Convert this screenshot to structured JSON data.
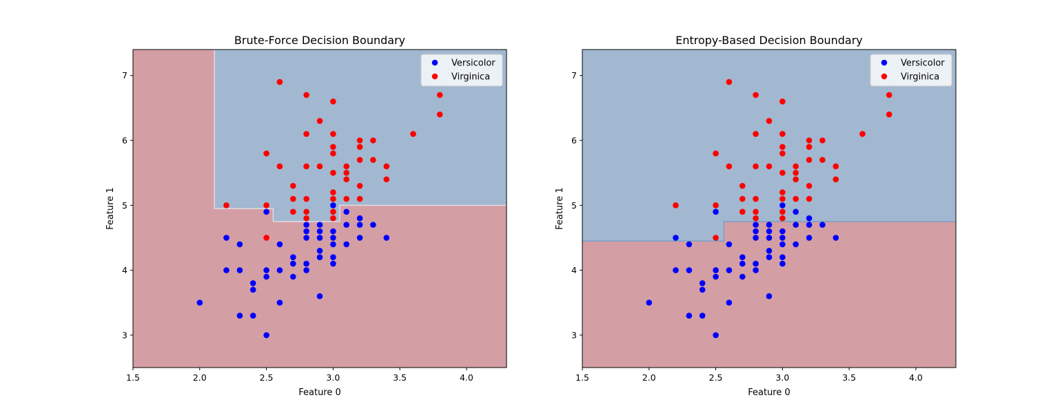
{
  "chart_data": [
    {
      "type": "scatter",
      "title": "Brute-Force Decision Boundary",
      "xlabel": "Feature 0",
      "ylabel": "Feature 1",
      "xlim": [
        1.5,
        4.3
      ],
      "ylim": [
        2.5,
        7.4
      ],
      "xticks": [
        "1.5",
        "2.0",
        "2.5",
        "3.0",
        "3.5",
        "4.0"
      ],
      "yticks": [
        "3",
        "4",
        "5",
        "6",
        "7"
      ],
      "legend_position": "top-right",
      "grid": false,
      "colors": {
        "versicolor": "#0000ff",
        "virginica": "#ff0000",
        "region_blue": "#a2b8d0",
        "region_red": "#d49ea5"
      },
      "decision_regions": {
        "red": "x < 2.11, or y < 4.95 (x < 2.55), or y < 4.75 (2.55 ≤ x < 3.05), or y < 5.0 (x ≥ 3.05)",
        "blue": "everywhere else"
      },
      "series": [
        {
          "name": "Versicolor",
          "color": "#0000ff",
          "points": [
            [
              2.0,
              3.5
            ],
            [
              2.2,
              4.5
            ],
            [
              2.2,
              4.0
            ],
            [
              2.3,
              4.4
            ],
            [
              2.3,
              4.0
            ],
            [
              2.3,
              3.3
            ],
            [
              2.4,
              3.8
            ],
            [
              2.4,
              3.7
            ],
            [
              2.4,
              3.3
            ],
            [
              2.5,
              4.9
            ],
            [
              2.5,
              4.0
            ],
            [
              2.5,
              3.9
            ],
            [
              2.5,
              3.0
            ],
            [
              2.6,
              4.4
            ],
            [
              2.6,
              4.0
            ],
            [
              2.6,
              3.5
            ],
            [
              2.7,
              4.2
            ],
            [
              2.7,
              4.1
            ],
            [
              2.7,
              3.9
            ],
            [
              2.8,
              4.7
            ],
            [
              2.8,
              4.6
            ],
            [
              2.8,
              4.5
            ],
            [
              2.8,
              4.1
            ],
            [
              2.8,
              4.0
            ],
            [
              2.9,
              4.7
            ],
            [
              2.9,
              4.6
            ],
            [
              2.9,
              4.5
            ],
            [
              2.9,
              4.3
            ],
            [
              2.9,
              4.2
            ],
            [
              2.9,
              3.6
            ],
            [
              3.0,
              5.0
            ],
            [
              3.0,
              4.6
            ],
            [
              3.0,
              4.5
            ],
            [
              3.0,
              4.4
            ],
            [
              3.0,
              4.2
            ],
            [
              3.0,
              4.1
            ],
            [
              3.1,
              4.9
            ],
            [
              3.1,
              4.7
            ],
            [
              3.1,
              4.4
            ],
            [
              3.2,
              4.8
            ],
            [
              3.2,
              4.7
            ],
            [
              3.2,
              4.5
            ],
            [
              3.3,
              4.7
            ],
            [
              3.4,
              4.5
            ]
          ]
        },
        {
          "name": "Virginica",
          "color": "#ff0000",
          "points": [
            [
              2.2,
              5.0
            ],
            [
              2.5,
              5.8
            ],
            [
              2.5,
              5.0
            ],
            [
              2.5,
              4.5
            ],
            [
              2.6,
              6.9
            ],
            [
              2.6,
              5.6
            ],
            [
              2.7,
              5.3
            ],
            [
              2.7,
              5.1
            ],
            [
              2.7,
              4.9
            ],
            [
              2.8,
              6.7
            ],
            [
              2.8,
              6.1
            ],
            [
              2.8,
              5.6
            ],
            [
              2.8,
              5.1
            ],
            [
              2.8,
              4.9
            ],
            [
              2.8,
              4.8
            ],
            [
              2.9,
              6.3
            ],
            [
              2.9,
              5.6
            ],
            [
              3.0,
              6.6
            ],
            [
              3.0,
              6.1
            ],
            [
              3.0,
              5.9
            ],
            [
              3.0,
              5.8
            ],
            [
              3.0,
              5.5
            ],
            [
              3.0,
              5.2
            ],
            [
              3.0,
              5.1
            ],
            [
              3.0,
              4.9
            ],
            [
              3.0,
              4.8
            ],
            [
              3.1,
              5.6
            ],
            [
              3.1,
              5.5
            ],
            [
              3.1,
              5.4
            ],
            [
              3.1,
              5.1
            ],
            [
              3.2,
              6.0
            ],
            [
              3.2,
              5.9
            ],
            [
              3.2,
              5.7
            ],
            [
              3.2,
              5.3
            ],
            [
              3.2,
              5.1
            ],
            [
              3.3,
              6.0
            ],
            [
              3.3,
              5.7
            ],
            [
              3.4,
              5.6
            ],
            [
              3.4,
              5.4
            ],
            [
              3.6,
              6.1
            ],
            [
              3.8,
              6.7
            ],
            [
              3.8,
              6.4
            ]
          ]
        }
      ]
    },
    {
      "type": "scatter",
      "title": "Entropy-Based Decision Boundary",
      "xlabel": "Feature 0",
      "ylabel": "Feature 1",
      "xlim": [
        1.5,
        4.3
      ],
      "ylim": [
        2.5,
        7.4
      ],
      "xticks": [
        "1.5",
        "2.0",
        "2.5",
        "3.0",
        "3.5",
        "4.0"
      ],
      "yticks": [
        "3",
        "4",
        "5",
        "6",
        "7"
      ],
      "legend_position": "top-right",
      "grid": false,
      "colors": {
        "versicolor": "#0000ff",
        "virginica": "#ff0000",
        "region_blue": "#a2b8d0",
        "region_red": "#d49ea5"
      },
      "decision_regions": {
        "red": "y < 4.45 (x < 2.55), or y < 4.75 (x ≥ 2.55)",
        "blue": "everywhere else"
      },
      "series": [
        {
          "name": "Versicolor",
          "color": "#0000ff",
          "points": [
            [
              2.0,
              3.5
            ],
            [
              2.2,
              4.5
            ],
            [
              2.2,
              4.0
            ],
            [
              2.3,
              4.4
            ],
            [
              2.3,
              4.0
            ],
            [
              2.3,
              3.3
            ],
            [
              2.4,
              3.8
            ],
            [
              2.4,
              3.7
            ],
            [
              2.4,
              3.3
            ],
            [
              2.5,
              4.9
            ],
            [
              2.5,
              4.0
            ],
            [
              2.5,
              3.9
            ],
            [
              2.5,
              3.0
            ],
            [
              2.6,
              4.4
            ],
            [
              2.6,
              4.0
            ],
            [
              2.6,
              3.5
            ],
            [
              2.7,
              4.2
            ],
            [
              2.7,
              4.1
            ],
            [
              2.7,
              3.9
            ],
            [
              2.8,
              4.7
            ],
            [
              2.8,
              4.6
            ],
            [
              2.8,
              4.5
            ],
            [
              2.8,
              4.1
            ],
            [
              2.8,
              4.0
            ],
            [
              2.9,
              4.7
            ],
            [
              2.9,
              4.6
            ],
            [
              2.9,
              4.5
            ],
            [
              2.9,
              4.3
            ],
            [
              2.9,
              4.2
            ],
            [
              2.9,
              3.6
            ],
            [
              3.0,
              5.0
            ],
            [
              3.0,
              4.6
            ],
            [
              3.0,
              4.5
            ],
            [
              3.0,
              4.4
            ],
            [
              3.0,
              4.2
            ],
            [
              3.0,
              4.1
            ],
            [
              3.1,
              4.9
            ],
            [
              3.1,
              4.7
            ],
            [
              3.1,
              4.4
            ],
            [
              3.2,
              4.8
            ],
            [
              3.2,
              4.7
            ],
            [
              3.2,
              4.5
            ],
            [
              3.3,
              4.7
            ],
            [
              3.4,
              4.5
            ]
          ]
        },
        {
          "name": "Virginica",
          "color": "#ff0000",
          "points": [
            [
              2.2,
              5.0
            ],
            [
              2.5,
              5.8
            ],
            [
              2.5,
              5.0
            ],
            [
              2.5,
              4.5
            ],
            [
              2.6,
              6.9
            ],
            [
              2.6,
              5.6
            ],
            [
              2.7,
              5.3
            ],
            [
              2.7,
              5.1
            ],
            [
              2.7,
              4.9
            ],
            [
              2.8,
              6.7
            ],
            [
              2.8,
              6.1
            ],
            [
              2.8,
              5.6
            ],
            [
              2.8,
              5.1
            ],
            [
              2.8,
              4.9
            ],
            [
              2.8,
              4.8
            ],
            [
              2.9,
              6.3
            ],
            [
              2.9,
              5.6
            ],
            [
              3.0,
              6.6
            ],
            [
              3.0,
              6.1
            ],
            [
              3.0,
              5.9
            ],
            [
              3.0,
              5.8
            ],
            [
              3.0,
              5.5
            ],
            [
              3.0,
              5.2
            ],
            [
              3.0,
              5.1
            ],
            [
              3.0,
              4.9
            ],
            [
              3.0,
              4.8
            ],
            [
              3.1,
              5.6
            ],
            [
              3.1,
              5.5
            ],
            [
              3.1,
              5.4
            ],
            [
              3.1,
              5.1
            ],
            [
              3.2,
              6.0
            ],
            [
              3.2,
              5.9
            ],
            [
              3.2,
              5.7
            ],
            [
              3.2,
              5.3
            ],
            [
              3.2,
              5.1
            ],
            [
              3.3,
              6.0
            ],
            [
              3.3,
              5.7
            ],
            [
              3.4,
              5.6
            ],
            [
              3.4,
              5.4
            ],
            [
              3.6,
              6.1
            ],
            [
              3.8,
              6.7
            ],
            [
              3.8,
              6.4
            ]
          ]
        }
      ]
    }
  ]
}
